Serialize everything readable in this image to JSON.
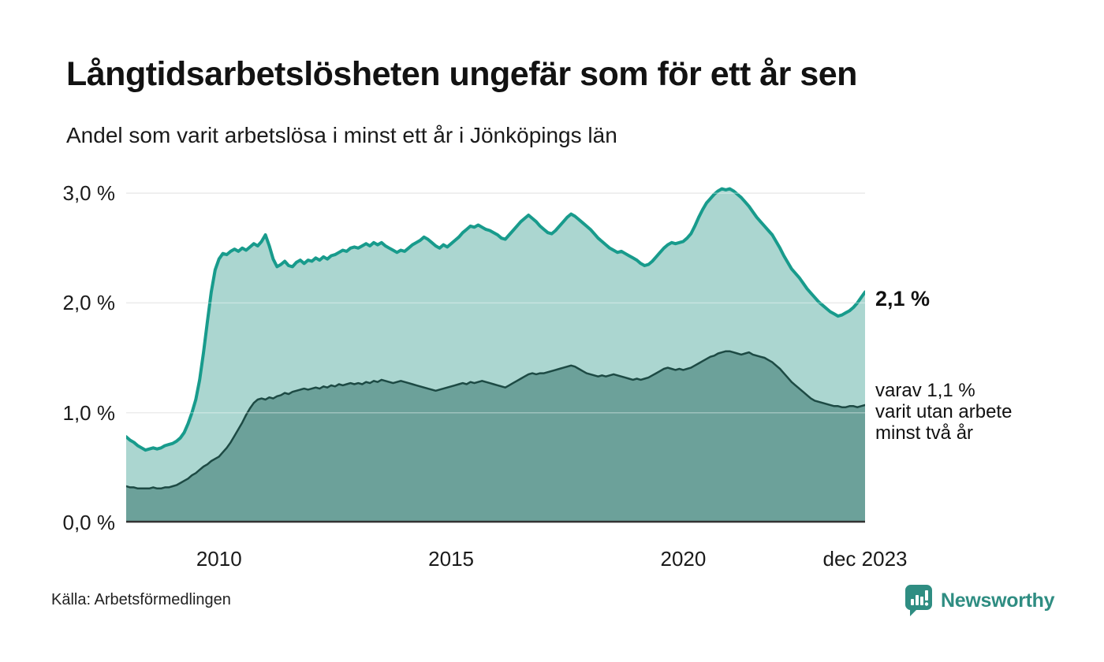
{
  "header": {
    "title": "Långtidsarbetslösheten ungefär som för ett år sen",
    "subtitle": "Andel som varit arbetslösa i minst ett år i Jönköpings län"
  },
  "chart_data": {
    "type": "area",
    "title": "Långtidsarbetslösheten ungefär som för ett år sen",
    "subtitle": "Andel som varit arbetslösa i minst ett år i Jönköpings län",
    "unit": "%",
    "x_start": "jan 2008",
    "x_end": "dec 2023",
    "x_frequency": "monthly",
    "ylim": [
      0,
      3.2
    ],
    "grid": true,
    "legend": "none",
    "colors": {
      "gridline": "#e2e2e2",
      "baseline": "#333333",
      "series1_line": "#189b8c",
      "series1_fill": "#abd6d0",
      "series2_line": "#1d4a44",
      "series2_fill": "#6ca19a"
    },
    "y_ticks": [
      {
        "value": 3,
        "label": "3,0 %"
      },
      {
        "value": 2,
        "label": "2,0 %"
      },
      {
        "value": 1,
        "label": "1,0 %"
      },
      {
        "value": 0,
        "label": "0,0 %"
      }
    ],
    "x_ticks": [
      {
        "label": "2010",
        "index": 24
      },
      {
        "label": "2015",
        "index": 84
      },
      {
        "label": "2020",
        "index": 144
      },
      {
        "label": "dec 2023",
        "index": 191
      }
    ],
    "series": [
      {
        "name": "Andel arbetslösa minst ett år",
        "values": [
          0.78,
          0.75,
          0.73,
          0.7,
          0.68,
          0.66,
          0.67,
          0.68,
          0.67,
          0.68,
          0.7,
          0.71,
          0.72,
          0.74,
          0.77,
          0.82,
          0.9,
          1.0,
          1.12,
          1.3,
          1.55,
          1.83,
          2.1,
          2.3,
          2.4,
          2.45,
          2.44,
          2.47,
          2.49,
          2.47,
          2.5,
          2.48,
          2.51,
          2.54,
          2.52,
          2.56,
          2.62,
          2.52,
          2.4,
          2.33,
          2.35,
          2.38,
          2.34,
          2.33,
          2.37,
          2.39,
          2.36,
          2.39,
          2.38,
          2.41,
          2.39,
          2.42,
          2.4,
          2.43,
          2.44,
          2.46,
          2.48,
          2.47,
          2.5,
          2.51,
          2.5,
          2.52,
          2.54,
          2.52,
          2.55,
          2.53,
          2.55,
          2.52,
          2.5,
          2.48,
          2.46,
          2.48,
          2.47,
          2.5,
          2.53,
          2.55,
          2.57,
          2.6,
          2.58,
          2.55,
          2.52,
          2.5,
          2.53,
          2.51,
          2.54,
          2.57,
          2.6,
          2.64,
          2.67,
          2.7,
          2.69,
          2.71,
          2.69,
          2.67,
          2.66,
          2.64,
          2.62,
          2.59,
          2.58,
          2.62,
          2.66,
          2.7,
          2.74,
          2.77,
          2.8,
          2.77,
          2.74,
          2.7,
          2.67,
          2.64,
          2.63,
          2.66,
          2.7,
          2.74,
          2.78,
          2.81,
          2.79,
          2.76,
          2.73,
          2.7,
          2.67,
          2.63,
          2.59,
          2.56,
          2.53,
          2.5,
          2.48,
          2.46,
          2.47,
          2.45,
          2.43,
          2.41,
          2.39,
          2.36,
          2.34,
          2.35,
          2.38,
          2.42,
          2.46,
          2.5,
          2.53,
          2.55,
          2.54,
          2.55,
          2.56,
          2.59,
          2.63,
          2.7,
          2.78,
          2.85,
          2.91,
          2.95,
          2.99,
          3.02,
          3.04,
          3.03,
          3.04,
          3.02,
          2.99,
          2.96,
          2.92,
          2.88,
          2.83,
          2.78,
          2.74,
          2.7,
          2.66,
          2.62,
          2.56,
          2.5,
          2.43,
          2.37,
          2.31,
          2.27,
          2.23,
          2.18,
          2.13,
          2.09,
          2.05,
          2.01,
          1.98,
          1.95,
          1.92,
          1.9,
          1.88,
          1.89,
          1.91,
          1.93,
          1.96,
          2.0,
          2.05,
          2.1
        ]
      },
      {
        "name": "Varav utan arbete minst två år",
        "values": [
          0.33,
          0.32,
          0.32,
          0.31,
          0.31,
          0.31,
          0.31,
          0.32,
          0.31,
          0.31,
          0.32,
          0.32,
          0.33,
          0.34,
          0.36,
          0.38,
          0.4,
          0.43,
          0.45,
          0.48,
          0.51,
          0.53,
          0.56,
          0.58,
          0.6,
          0.64,
          0.68,
          0.73,
          0.79,
          0.85,
          0.91,
          0.98,
          1.04,
          1.09,
          1.12,
          1.13,
          1.12,
          1.14,
          1.13,
          1.15,
          1.16,
          1.18,
          1.17,
          1.19,
          1.2,
          1.21,
          1.22,
          1.21,
          1.22,
          1.23,
          1.22,
          1.24,
          1.23,
          1.25,
          1.24,
          1.26,
          1.25,
          1.26,
          1.27,
          1.26,
          1.27,
          1.26,
          1.28,
          1.27,
          1.29,
          1.28,
          1.3,
          1.29,
          1.28,
          1.27,
          1.28,
          1.29,
          1.28,
          1.27,
          1.26,
          1.25,
          1.24,
          1.23,
          1.22,
          1.21,
          1.2,
          1.21,
          1.22,
          1.23,
          1.24,
          1.25,
          1.26,
          1.27,
          1.26,
          1.28,
          1.27,
          1.28,
          1.29,
          1.28,
          1.27,
          1.26,
          1.25,
          1.24,
          1.23,
          1.25,
          1.27,
          1.29,
          1.31,
          1.33,
          1.35,
          1.36,
          1.35,
          1.36,
          1.36,
          1.37,
          1.38,
          1.39,
          1.4,
          1.41,
          1.42,
          1.43,
          1.42,
          1.4,
          1.38,
          1.36,
          1.35,
          1.34,
          1.33,
          1.34,
          1.33,
          1.34,
          1.35,
          1.34,
          1.33,
          1.32,
          1.31,
          1.3,
          1.31,
          1.3,
          1.31,
          1.32,
          1.34,
          1.36,
          1.38,
          1.4,
          1.41,
          1.4,
          1.39,
          1.4,
          1.39,
          1.4,
          1.41,
          1.43,
          1.45,
          1.47,
          1.49,
          1.51,
          1.52,
          1.54,
          1.55,
          1.56,
          1.56,
          1.55,
          1.54,
          1.53,
          1.54,
          1.55,
          1.53,
          1.52,
          1.51,
          1.5,
          1.48,
          1.46,
          1.43,
          1.4,
          1.36,
          1.32,
          1.28,
          1.25,
          1.22,
          1.19,
          1.16,
          1.13,
          1.11,
          1.1,
          1.09,
          1.08,
          1.07,
          1.06,
          1.06,
          1.05,
          1.05,
          1.06,
          1.06,
          1.05,
          1.06,
          1.07
        ]
      }
    ],
    "annotations": {
      "end_value_label": "2,1 %",
      "secondary_lines": [
        "varav 1,1 %",
        "varit utan arbete",
        "minst två år"
      ]
    }
  },
  "footer": {
    "source": "Källa: Arbetsförmedlingen",
    "logo_text": "Newsworthy",
    "logo_icon": "bar-chart-speech-bubble-icon",
    "brand_color": "#2f8d82"
  }
}
